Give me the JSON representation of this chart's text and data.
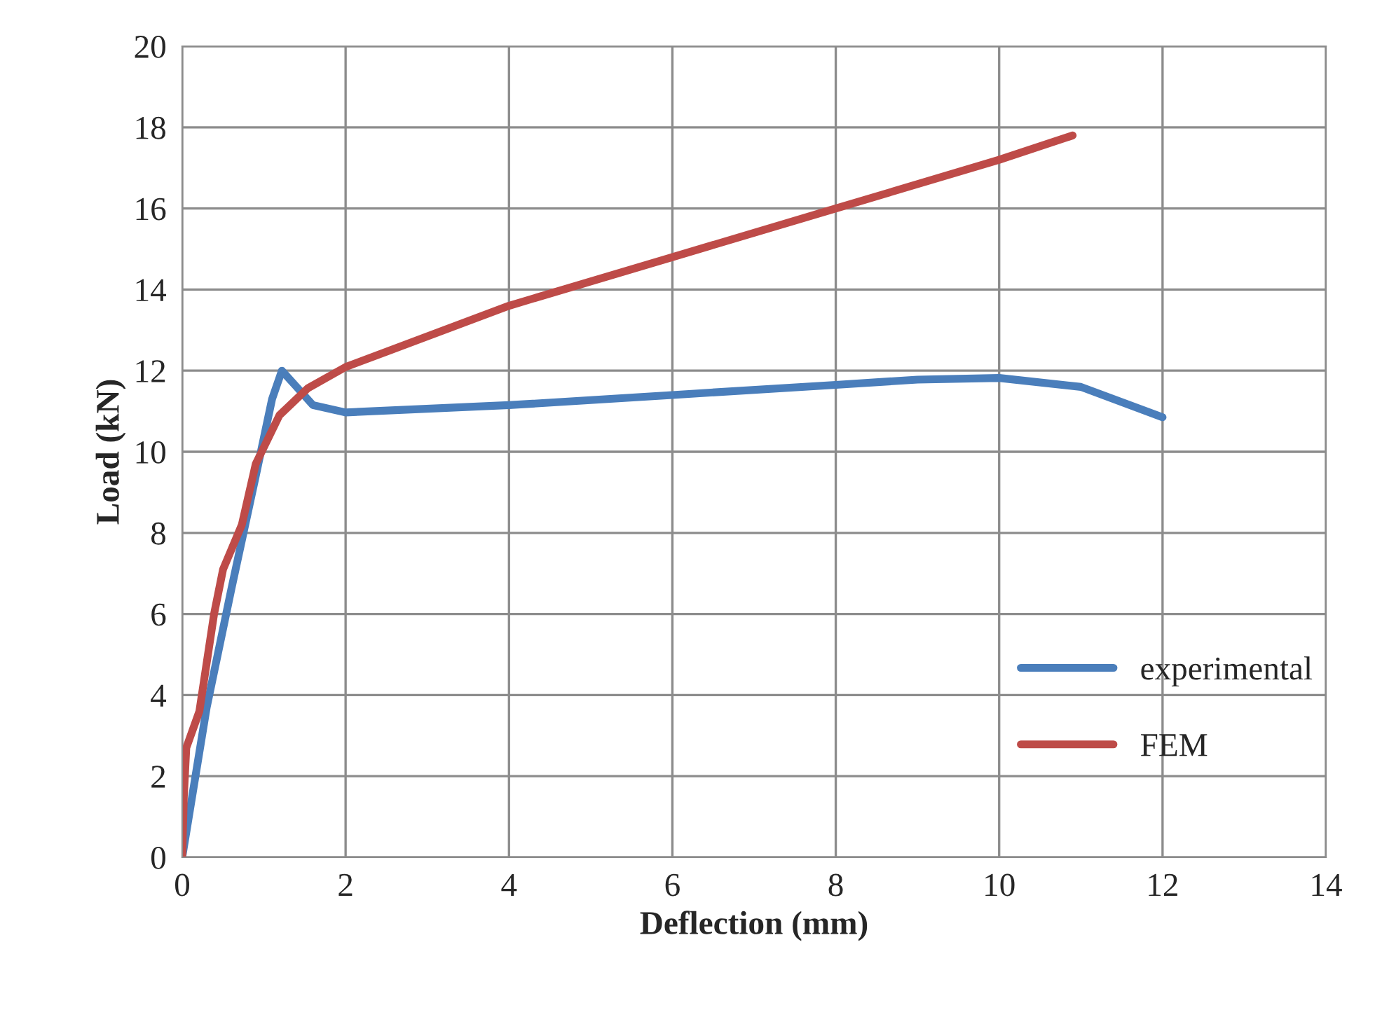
{
  "chart_data": {
    "type": "line",
    "xlabel": "Deflection (mm)",
    "ylabel": "Load (kN)",
    "xlim": [
      0,
      14
    ],
    "xticks": [
      0,
      2,
      4,
      6,
      8,
      10,
      12,
      14
    ],
    "ylim": [
      0,
      20
    ],
    "yticks": [
      0,
      2,
      4,
      6,
      8,
      10,
      12,
      14,
      16,
      18,
      20
    ],
    "grid": true,
    "legend": "lower right",
    "marker": "none",
    "line_style": "solid",
    "series": [
      {
        "name": "experimental",
        "color": "#4a7ebb",
        "x": [
          0,
          0.3,
          0.6,
          0.9,
          1.1,
          1.22,
          1.4,
          1.6,
          2,
          4,
          6,
          8,
          9,
          10,
          11,
          12
        ],
        "values": [
          0,
          3.7,
          6.6,
          9.4,
          11.3,
          12.0,
          11.6,
          11.15,
          10.97,
          11.15,
          11.4,
          11.65,
          11.78,
          11.82,
          11.6,
          10.85
        ]
      },
      {
        "name": "FEM",
        "color": "#be4b48",
        "x": [
          0,
          0.02,
          0.05,
          0.21,
          0.39,
          0.5,
          0.73,
          0.9,
          1.19,
          1.54,
          2.0,
          4,
          6,
          8,
          10,
          10.9
        ],
        "values": [
          0,
          1.5,
          2.7,
          3.6,
          6.0,
          7.1,
          8.2,
          9.7,
          10.9,
          11.57,
          12.09,
          13.6,
          14.8,
          16.0,
          17.2,
          17.8
        ]
      }
    ]
  }
}
